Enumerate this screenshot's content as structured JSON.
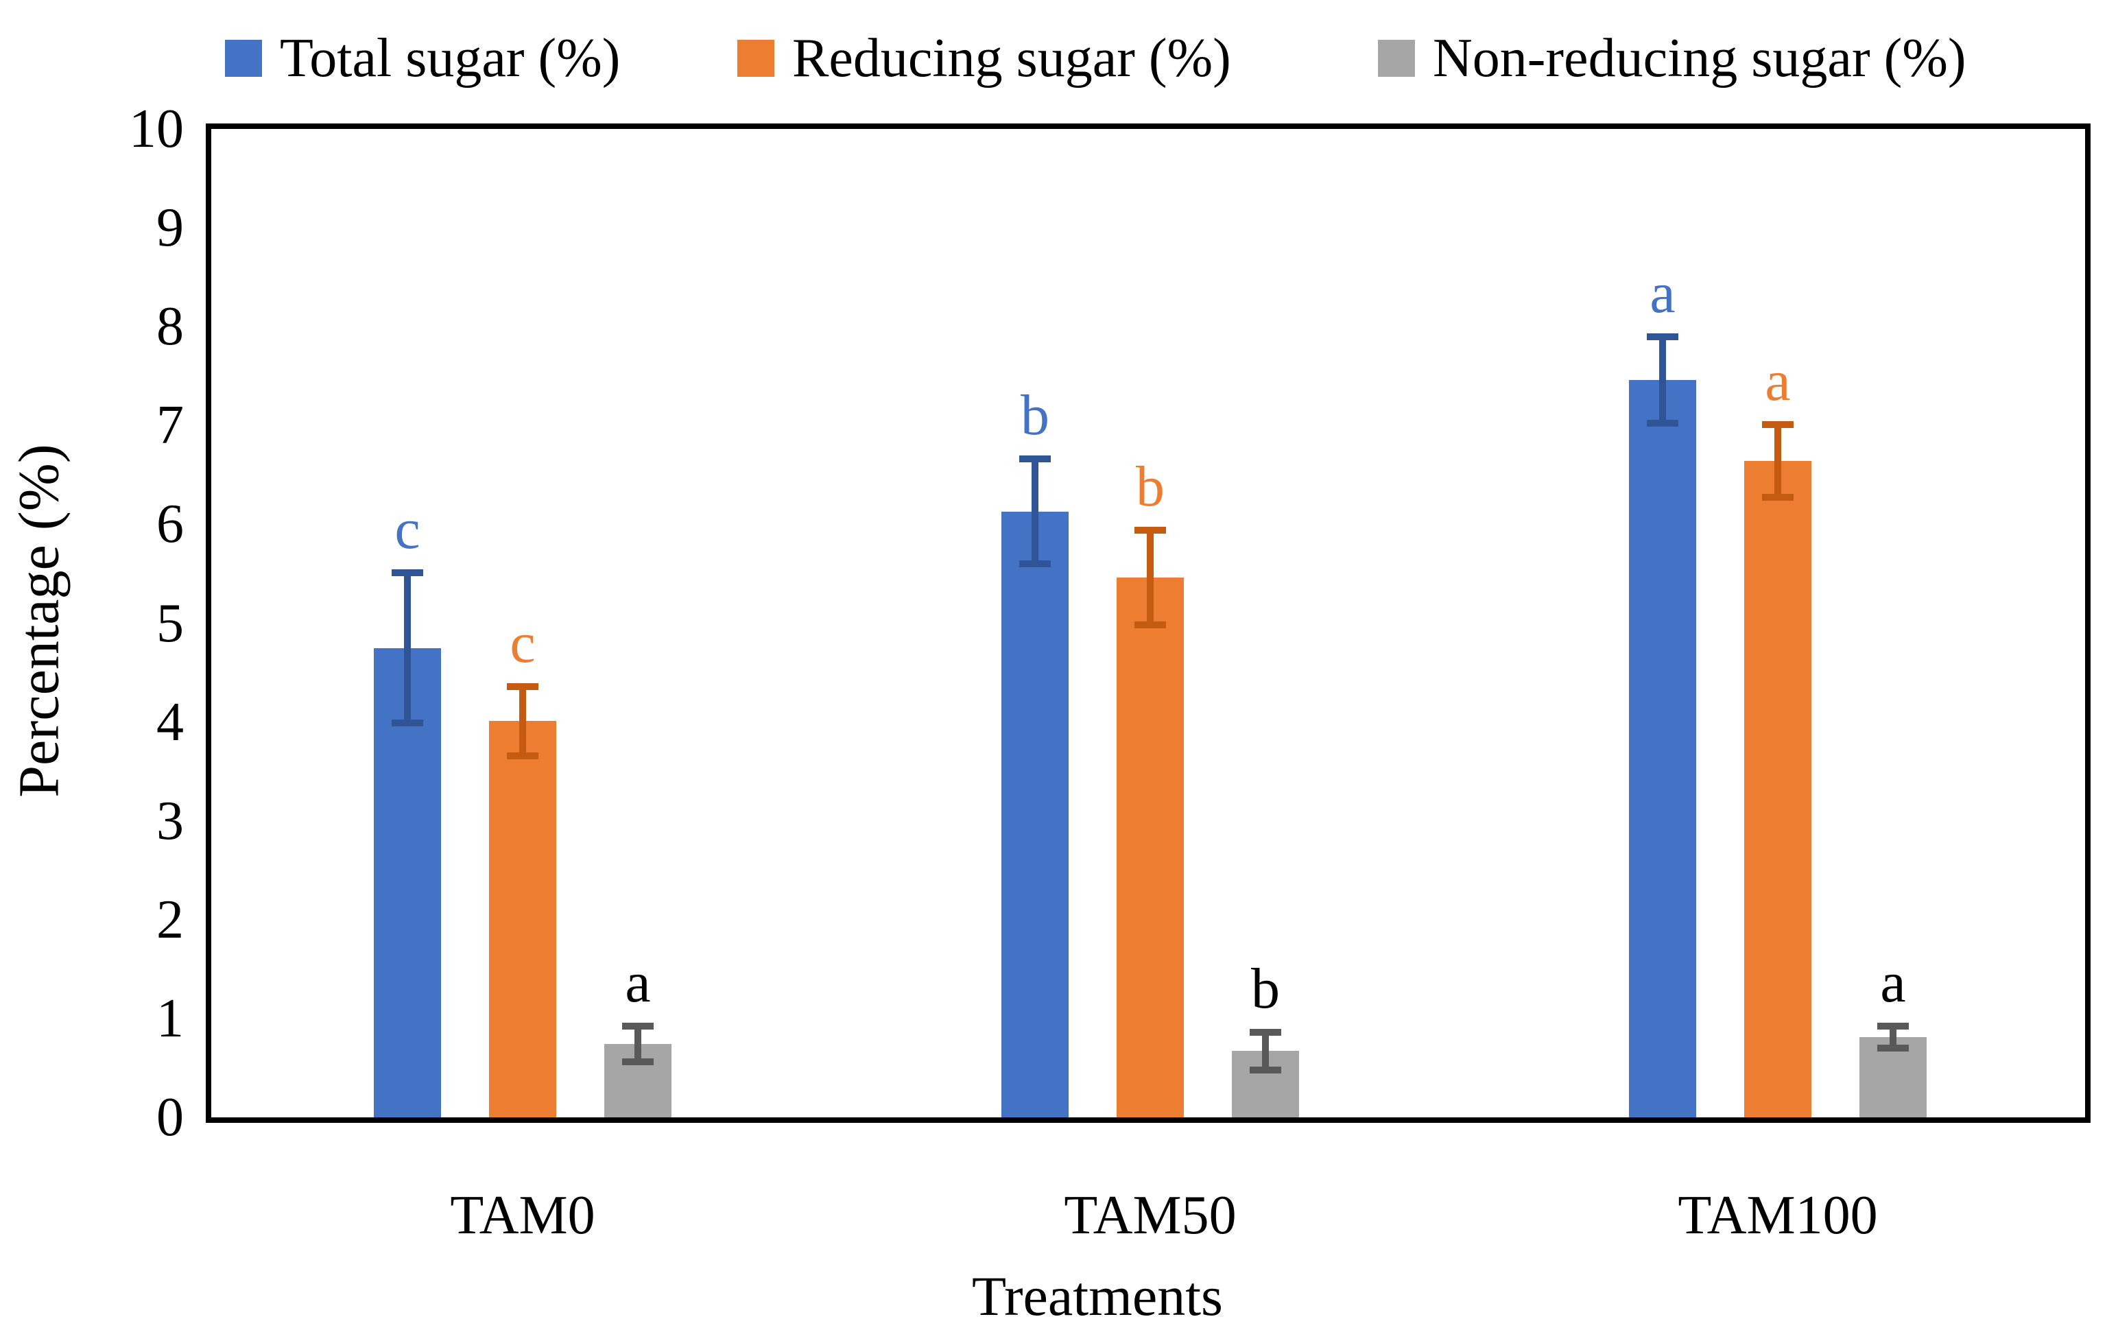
{
  "legend": [
    {
      "label": "Total sugar (%)",
      "color": "#4472C4"
    },
    {
      "label": "Reducing sugar (%)",
      "color": "#ED7D31"
    },
    {
      "label": "Non-reducing sugar (%)",
      "color": "#A6A6A6"
    }
  ],
  "y_axis": {
    "title": "Percentage (%)",
    "tick_labels": [
      "0",
      "1",
      "2",
      "3",
      "4",
      "5",
      "6",
      "7",
      "8",
      "9",
      "10"
    ],
    "min": 0,
    "max": 10,
    "step": 1
  },
  "x_axis": {
    "title": "Treatments",
    "categories": [
      "TAM0",
      "TAM50",
      "TAM100"
    ]
  },
  "chart_data": {
    "type": "bar",
    "title": "",
    "xlabel": "Treatments",
    "ylabel": "Percentage (%)",
    "ylim": [
      0,
      10
    ],
    "grid": false,
    "legend_position": "top",
    "categories": [
      "TAM0",
      "TAM50",
      "TAM100"
    ],
    "series": [
      {
        "name": "Total sugar (%)",
        "color": "#4472C4",
        "err_color": "#2F5597",
        "values": [
          4.75,
          6.13,
          7.46
        ],
        "errors": [
          0.76,
          0.53,
          0.44
        ],
        "letters": [
          "c",
          "b",
          "a"
        ],
        "letter_color": "#4472C4"
      },
      {
        "name": "Reducing sugar (%)",
        "color": "#ED7D31",
        "err_color": "#C55A11",
        "values": [
          4.01,
          5.46,
          6.64
        ],
        "errors": [
          0.35,
          0.48,
          0.37
        ],
        "letters": [
          "c",
          "b",
          "a"
        ],
        "letter_color": "#ED7D31"
      },
      {
        "name": "Non-reducing sugar (%)",
        "color": "#A6A6A6",
        "err_color": "#595959",
        "values": [
          0.74,
          0.67,
          0.81
        ],
        "errors": [
          0.18,
          0.19,
          0.11
        ],
        "letters": [
          "a",
          "b",
          "a"
        ],
        "letter_color": "#000000"
      }
    ]
  }
}
